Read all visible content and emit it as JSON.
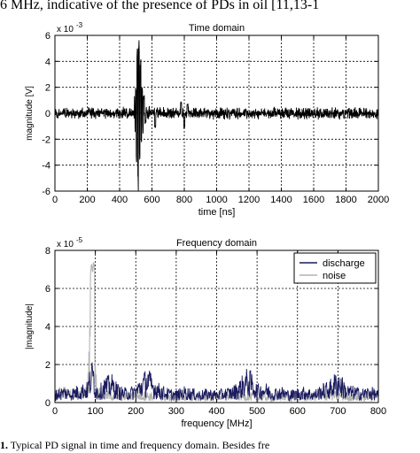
{
  "top_text": "6 MHz, indicative of the presence of PDs in oil [11,13-1",
  "caption": {
    "number": "1.",
    "text": "Typical PD signal in time and frequency domain. Besides fre"
  },
  "chart_data": [
    {
      "type": "line",
      "title": "Time domain",
      "xlabel": "time [ns]",
      "ylabel": "magnitude [V]",
      "exponent_label": "x 10",
      "exponent_power": "-3",
      "xlim": [
        0,
        2000
      ],
      "ylim": [
        -6,
        6
      ],
      "xticks": [
        "0",
        "200",
        "400",
        "600",
        "800",
        "1000",
        "1200",
        "1400",
        "1600",
        "1800",
        "2000"
      ],
      "yticks": [
        "-6",
        "-4",
        "-2",
        "0",
        "2",
        "4",
        "6"
      ],
      "grid": true,
      "series": [
        {
          "color": "#000000",
          "noise_level": 0.35,
          "pulse": {
            "x": [
              500,
              505,
              510,
              515,
              520,
              525,
              530,
              535,
              540,
              545,
              550,
              560
            ],
            "y": [
              1.5,
              -3.7,
              5.0,
              -5.8,
              5.7,
              -3.5,
              4.2,
              -2.4,
              2.0,
              -1.5,
              1.2,
              -0.8
            ]
          },
          "minor_events": {
            "x": [
              620,
              780,
              800,
              820
            ],
            "y": [
              -1.1,
              0.9,
              -1.2,
              0.7
            ]
          }
        }
      ]
    },
    {
      "type": "line",
      "title": "Frequency domain",
      "xlabel": "frequency [MHz]",
      "ylabel": "|magnitude|",
      "exponent_label": "x 10",
      "exponent_power": "-5",
      "xlim": [
        0,
        800
      ],
      "ylim": [
        0,
        8
      ],
      "xticks": [
        "0",
        "100",
        "200",
        "300",
        "400",
        "500",
        "600",
        "700",
        "800"
      ],
      "yticks": [
        "0",
        "2",
        "4",
        "6",
        "8"
      ],
      "grid": true,
      "legend": "top-right",
      "series": [
        {
          "name": "discharge",
          "color": "#1a1a5e",
          "x": [
            0,
            20,
            40,
            60,
            80,
            90,
            95,
            100,
            110,
            120,
            140,
            160,
            180,
            200,
            220,
            230,
            240,
            260,
            280,
            300,
            320,
            340,
            360,
            380,
            400,
            420,
            440,
            460,
            470,
            480,
            490,
            500,
            520,
            540,
            560,
            580,
            600,
            620,
            640,
            660,
            680,
            690,
            700,
            710,
            720,
            740,
            760,
            780,
            800
          ],
          "y": [
            0.6,
            0.8,
            0.7,
            0.9,
            1.0,
            2.0,
            2.2,
            1.0,
            0.8,
            1.2,
            1.4,
            0.8,
            0.7,
            0.9,
            1.5,
            1.8,
            1.3,
            0.9,
            0.7,
            0.6,
            0.8,
            0.7,
            0.6,
            0.7,
            0.6,
            0.7,
            0.8,
            1.2,
            1.6,
            1.7,
            1.3,
            0.9,
            1.0,
            0.7,
            0.8,
            0.6,
            0.7,
            0.8,
            0.6,
            0.9,
            1.1,
            1.4,
            1.6,
            1.3,
            0.9,
            0.8,
            0.7,
            0.8,
            0.6
          ]
        },
        {
          "name": "noise",
          "color": "#b4b4b4",
          "x": [
            0,
            20,
            40,
            60,
            80,
            85,
            88,
            90,
            92,
            95,
            98,
            100,
            105,
            120,
            160,
            200,
            240,
            280,
            320,
            360,
            400,
            440,
            480,
            520,
            560,
            600,
            640,
            680,
            720,
            760,
            800
          ],
          "y": [
            0.7,
            0.8,
            0.6,
            0.7,
            0.8,
            3.0,
            7.5,
            8.0,
            7.0,
            8.0,
            7.5,
            2.0,
            0.8,
            0.6,
            0.5,
            0.6,
            0.5,
            0.4,
            0.5,
            0.4,
            0.5,
            0.6,
            0.5,
            0.4,
            0.5,
            0.4,
            0.5,
            0.6,
            0.5,
            0.4,
            0.5
          ]
        }
      ]
    }
  ]
}
